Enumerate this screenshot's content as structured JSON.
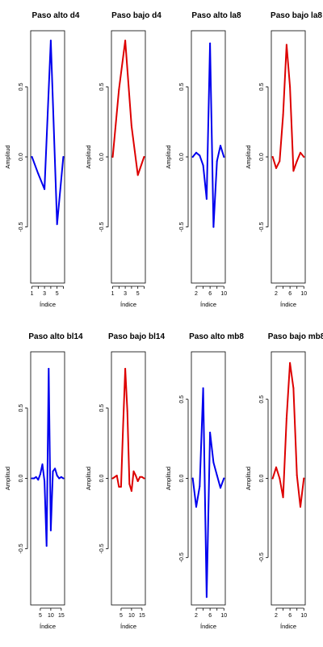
{
  "chart_data": [
    {
      "type": "line",
      "title": "Paso alto d4",
      "xlabel": "Índice",
      "ylabel": "Amplitud",
      "color": "#0000ee",
      "x": [
        1,
        2,
        3,
        4,
        5,
        6
      ],
      "y": [
        0.0,
        -0.12,
        -0.23,
        0.83,
        -0.48,
        0.0
      ],
      "xlim": [
        0.8,
        6.2
      ],
      "ylim": [
        -0.9,
        0.9
      ],
      "xticks": [
        1,
        3,
        5
      ],
      "xminor": [
        2,
        4,
        6
      ],
      "yticks": [
        -0.5,
        0.0,
        0.5
      ]
    },
    {
      "type": "line",
      "title": "Paso bajo d4",
      "xlabel": "Índice",
      "ylabel": "Amplitud",
      "color": "#dd0000",
      "x": [
        1,
        2,
        3,
        4,
        5,
        6
      ],
      "y": [
        0.0,
        0.48,
        0.83,
        0.22,
        -0.13,
        0.0
      ],
      "xlim": [
        0.8,
        6.2
      ],
      "ylim": [
        -0.9,
        0.9
      ],
      "xticks": [
        1,
        3,
        5
      ],
      "xminor": [
        2,
        4,
        6
      ],
      "yticks": [
        -0.5,
        0.0,
        0.5
      ]
    },
    {
      "type": "line",
      "title": "Paso alto la8",
      "xlabel": "Índice",
      "ylabel": "Amplitud",
      "color": "#0000ee",
      "x": [
        1,
        2,
        3,
        4,
        5,
        6,
        7,
        8,
        9,
        10
      ],
      "y": [
        0.0,
        0.03,
        0.01,
        -0.06,
        -0.3,
        0.81,
        -0.5,
        -0.03,
        0.08,
        0.0
      ],
      "xlim": [
        0.6,
        10.4
      ],
      "ylim": [
        -0.9,
        0.9
      ],
      "xticks": [
        2,
        6,
        10
      ],
      "xminor": [
        4,
        8
      ],
      "yticks": [
        -0.5,
        0.0,
        0.5
      ]
    },
    {
      "type": "line",
      "title": "Paso bajo la8",
      "xlabel": "Índice",
      "ylabel": "Amplitud",
      "color": "#dd0000",
      "x": [
        1,
        2,
        3,
        4,
        5,
        6,
        7,
        8,
        9,
        10
      ],
      "y": [
        0.0,
        -0.08,
        -0.03,
        0.3,
        0.8,
        0.5,
        -0.1,
        -0.03,
        0.03,
        0.0
      ],
      "xlim": [
        0.6,
        10.4
      ],
      "ylim": [
        -0.9,
        0.9
      ],
      "xticks": [
        2,
        6,
        10
      ],
      "xminor": [
        4,
        8
      ],
      "yticks": [
        -0.5,
        0.0,
        0.5
      ]
    },
    {
      "type": "line",
      "title": "Paso alto bl14",
      "xlabel": "Índice",
      "ylabel": "Amplitud",
      "color": "#0000ee",
      "x": [
        1,
        2,
        3,
        4,
        5,
        6,
        7,
        8,
        9,
        10,
        11,
        12,
        13,
        14,
        15,
        16
      ],
      "y": [
        0.0,
        0.0,
        0.01,
        -0.01,
        0.03,
        0.1,
        -0.02,
        -0.48,
        0.78,
        -0.37,
        0.05,
        0.07,
        0.02,
        0.0,
        0.01,
        0.0
      ],
      "xlim": [
        0.4,
        16.6
      ],
      "ylim": [
        -0.9,
        0.9
      ],
      "xticks": [
        5,
        10,
        15
      ],
      "xminor": [],
      "yticks": [
        -0.5,
        0.0,
        0.5
      ]
    },
    {
      "type": "line",
      "title": "Paso bajo bl14",
      "xlabel": "Índice",
      "ylabel": "Amplitud",
      "color": "#dd0000",
      "x": [
        1,
        2,
        3,
        4,
        5,
        6,
        7,
        8,
        9,
        10,
        11,
        12,
        13,
        14,
        15,
        16
      ],
      "y": [
        0.0,
        0.01,
        0.02,
        -0.06,
        -0.06,
        0.38,
        0.78,
        0.48,
        -0.04,
        -0.09,
        0.05,
        0.02,
        -0.02,
        0.01,
        0.01,
        0.0
      ],
      "xlim": [
        0.4,
        16.6
      ],
      "ylim": [
        -0.9,
        0.9
      ],
      "xticks": [
        5,
        10,
        15
      ],
      "xminor": [],
      "yticks": [
        -0.5,
        0.0,
        0.5
      ]
    },
    {
      "type": "line",
      "title": "Paso alto mb8",
      "xlabel": "Índice",
      "ylabel": "Amplitud",
      "color": "#0000ee",
      "x": [
        1,
        2,
        3,
        4,
        5,
        6,
        7,
        8,
        9,
        10
      ],
      "y": [
        0.0,
        -0.18,
        -0.05,
        0.57,
        -0.75,
        0.29,
        0.1,
        0.02,
        -0.06,
        0.0
      ],
      "xlim": [
        0.6,
        10.4
      ],
      "ylim": [
        -0.8,
        0.8
      ],
      "xticks": [
        2,
        6,
        10
      ],
      "xminor": [
        4,
        8
      ],
      "yticks": [
        -0.5,
        0.0,
        0.5
      ]
    },
    {
      "type": "line",
      "title": "Paso bajo mb8",
      "xlabel": "Índice",
      "ylabel": "Amplitud",
      "color": "#dd0000",
      "x": [
        1,
        2,
        3,
        4,
        5,
        6,
        7,
        8,
        9,
        10
      ],
      "y": [
        0.0,
        0.07,
        0.0,
        -0.12,
        0.38,
        0.73,
        0.57,
        0.02,
        -0.18,
        0.0
      ],
      "xlim": [
        0.6,
        10.4
      ],
      "ylim": [
        -0.8,
        0.8
      ],
      "xticks": [
        2,
        6,
        10
      ],
      "xminor": [
        4,
        8
      ],
      "yticks": [
        -0.5,
        0.0,
        0.5
      ]
    }
  ]
}
